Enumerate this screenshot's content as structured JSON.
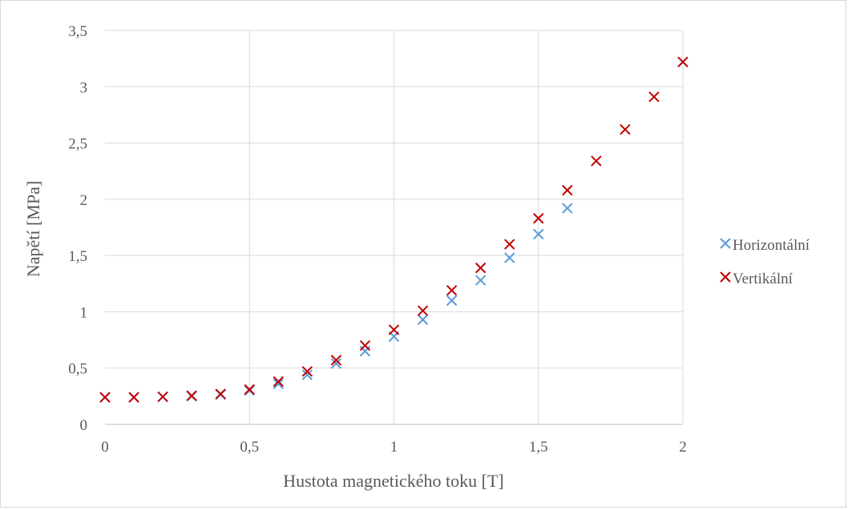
{
  "chart_data": {
    "type": "scatter",
    "title": "",
    "xlabel": "Hustota magnetického toku [T]",
    "ylabel": "Napětí [MPa]",
    "xlim": [
      0,
      2
    ],
    "ylim": [
      0,
      3.5
    ],
    "x_ticks": [
      0,
      0.5,
      1,
      1.5,
      2
    ],
    "x_tick_labels": [
      "0",
      "0,5",
      "1",
      "1,5",
      "2"
    ],
    "y_ticks": [
      0,
      0.5,
      1,
      1.5,
      2,
      2.5,
      3,
      3.5
    ],
    "y_tick_labels": [
      "0",
      "0,5",
      "1",
      "1,5",
      "2",
      "2,5",
      "3",
      "3,5"
    ],
    "grid": true,
    "legend_position": "right",
    "marker": "x",
    "series": [
      {
        "name": "Horizontální",
        "color": "#5b9bd5",
        "x": [
          0,
          0.1,
          0.2,
          0.3,
          0.4,
          0.5,
          0.6,
          0.7,
          0.8,
          0.9,
          1.0,
          1.1,
          1.2,
          1.3,
          1.4,
          1.5,
          1.6
        ],
        "y": [
          0.24,
          0.24,
          0.245,
          0.25,
          0.265,
          0.3,
          0.36,
          0.44,
          0.54,
          0.65,
          0.78,
          0.93,
          1.1,
          1.28,
          1.48,
          1.69,
          1.92
        ]
      },
      {
        "name": "Vertikální",
        "color": "#c00000",
        "x": [
          0,
          0.1,
          0.2,
          0.3,
          0.4,
          0.5,
          0.6,
          0.7,
          0.8,
          0.9,
          1.0,
          1.1,
          1.2,
          1.3,
          1.4,
          1.5,
          1.6,
          1.7,
          1.8,
          1.9,
          2.0
        ],
        "y": [
          0.24,
          0.24,
          0.245,
          0.255,
          0.27,
          0.31,
          0.38,
          0.47,
          0.57,
          0.7,
          0.84,
          1.01,
          1.19,
          1.39,
          1.6,
          1.83,
          2.08,
          2.34,
          2.62,
          2.91,
          3.22
        ]
      }
    ]
  }
}
